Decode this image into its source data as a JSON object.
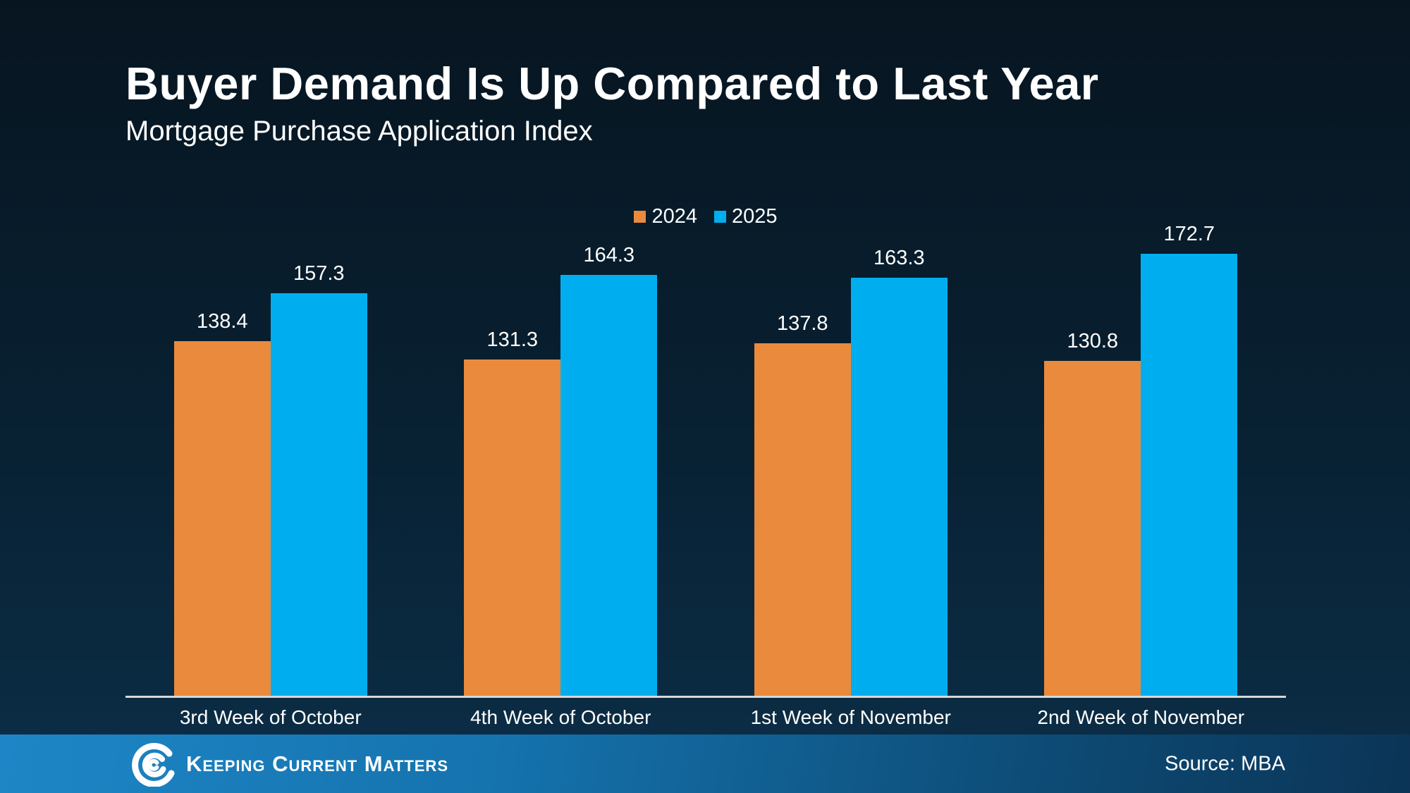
{
  "page": {
    "title": "Buyer Demand Is Up Compared to Last Year",
    "subtitle": "Mortgage Purchase Application Index"
  },
  "chart_data": {
    "type": "bar",
    "title": "Buyer Demand Is Up Compared to Last Year",
    "subtitle": "Mortgage Purchase Application Index",
    "categories": [
      "3rd Week of October",
      "4th Week of October",
      "1st Week of November",
      "2nd Week of November"
    ],
    "series": [
      {
        "name": "2024",
        "color": "#EA8A3C",
        "values": [
          138.4,
          131.3,
          137.8,
          130.8
        ]
      },
      {
        "name": "2025",
        "color": "#00AEEF",
        "values": [
          157.3,
          164.3,
          163.3,
          172.7
        ]
      }
    ],
    "xlabel": "",
    "ylabel": "",
    "ylim": [
      0,
      190
    ],
    "grid": false,
    "legend_position": "top-center",
    "value_labels": true,
    "source": "Source: MBA"
  },
  "footer": {
    "brand": "Keeping Current Matters",
    "source": "Source: MBA",
    "logo_icon": "kcm-swirl-logo"
  },
  "colors": {
    "background_top": "#071520",
    "background_bottom": "#0B2C44",
    "bar_2024": "#EA8A3C",
    "bar_2025": "#00AEEF",
    "axis_line": "#D8D8D8",
    "footer_left": "#1E86C6",
    "footer_right": "#0B3456",
    "text": "#FFFFFF"
  }
}
